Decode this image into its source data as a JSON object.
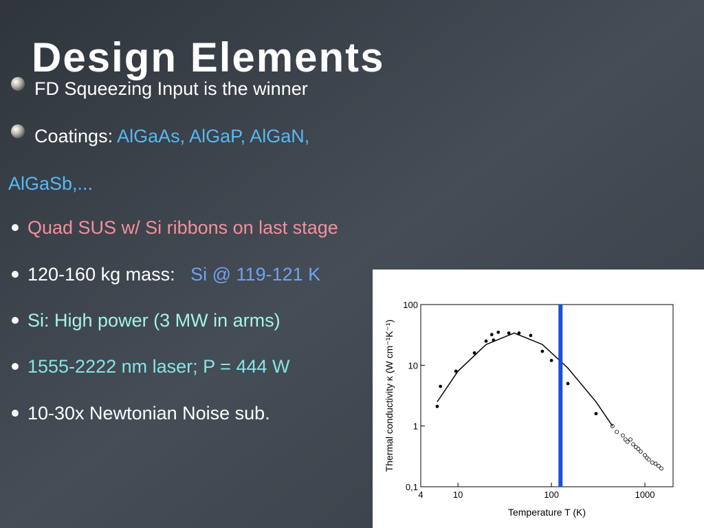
{
  "title": "Design Elements",
  "lines": [
    {
      "marker": "sphere",
      "segments": [
        {
          "text": "FD Squeezing Input is the winner",
          "color": "#ffffff"
        }
      ]
    },
    {
      "marker": "sphere",
      "segments": [
        {
          "text": "Coatings: ",
          "color": "#ffffff"
        },
        {
          "text": "AlGaAs, AlGaP, AlGaN,",
          "color": "#5ab8f2"
        }
      ]
    },
    {
      "marker": "none",
      "segments": [
        {
          "text": "AlGaSb,...",
          "color": "#5ab8f2"
        }
      ]
    },
    {
      "marker": "dot",
      "segments": [
        {
          "text": "Quad SUS w/ Si ribbons on last stage",
          "color": "#f4909e"
        }
      ]
    },
    {
      "marker": "dot",
      "segments": [
        {
          "text": "120-160 kg mass:   ",
          "color": "#ffffff"
        },
        {
          "text": "Si @ 119-121 K",
          "color": "#6fa2f2"
        }
      ]
    },
    {
      "marker": "dot",
      "segments": [
        {
          "text": "Si: High power (3 MW in arms)",
          "color": "#a6f2ea"
        }
      ]
    },
    {
      "marker": "dot",
      "segments": [
        {
          "text": "1555-2222 nm laser; P = 444 W",
          "color": "#86e4e6"
        }
      ]
    },
    {
      "marker": "dot",
      "segments": [
        {
          "text": "10-30x Newtonian Noise sub.",
          "color": "#ffffff"
        }
      ]
    }
  ],
  "chart_data": {
    "type": "scatter",
    "x_label": "Temperature T (K)",
    "y_label": "Thermal conductivity κ (W cm⁻¹K⁻¹)",
    "xscale": "log",
    "yscale": "log",
    "xlim": [
      4,
      2000
    ],
    "ylim": [
      0.1,
      100
    ],
    "xticks": [
      4,
      10,
      100,
      1000
    ],
    "yticks": [
      {
        "value": 0.1,
        "label": "0,1"
      },
      1,
      10,
      100
    ],
    "series": [
      {
        "marker": "filled",
        "color": "#000000",
        "x": [
          6,
          6.5,
          9.5,
          15,
          20,
          23,
          24,
          27,
          35,
          45,
          60,
          80,
          100,
          150,
          300
        ],
        "y": [
          2.1,
          4.5,
          8,
          16,
          25,
          32,
          26,
          35,
          34,
          34,
          31,
          17,
          12,
          5,
          1.6
        ]
      },
      {
        "marker": "open",
        "color": "#000000",
        "x": [
          450,
          500,
          580,
          620,
          650,
          700,
          750,
          800,
          850,
          900,
          1000,
          1050,
          1100,
          1200,
          1300,
          1400,
          1500
        ],
        "y": [
          1.0,
          0.8,
          0.7,
          0.6,
          0.55,
          0.6,
          0.5,
          0.45,
          0.42,
          0.38,
          0.33,
          0.3,
          0.28,
          0.25,
          0.24,
          0.22,
          0.2
        ]
      },
      {
        "marker": "line",
        "color": "#000000",
        "x": [
          6,
          10,
          20,
          40,
          80,
          150,
          300,
          450
        ],
        "y": [
          2.5,
          8,
          22,
          34,
          22,
          9,
          2.5,
          1.0
        ]
      }
    ],
    "reference_line": {
      "x": 125,
      "color": "#1a4fd8"
    }
  }
}
